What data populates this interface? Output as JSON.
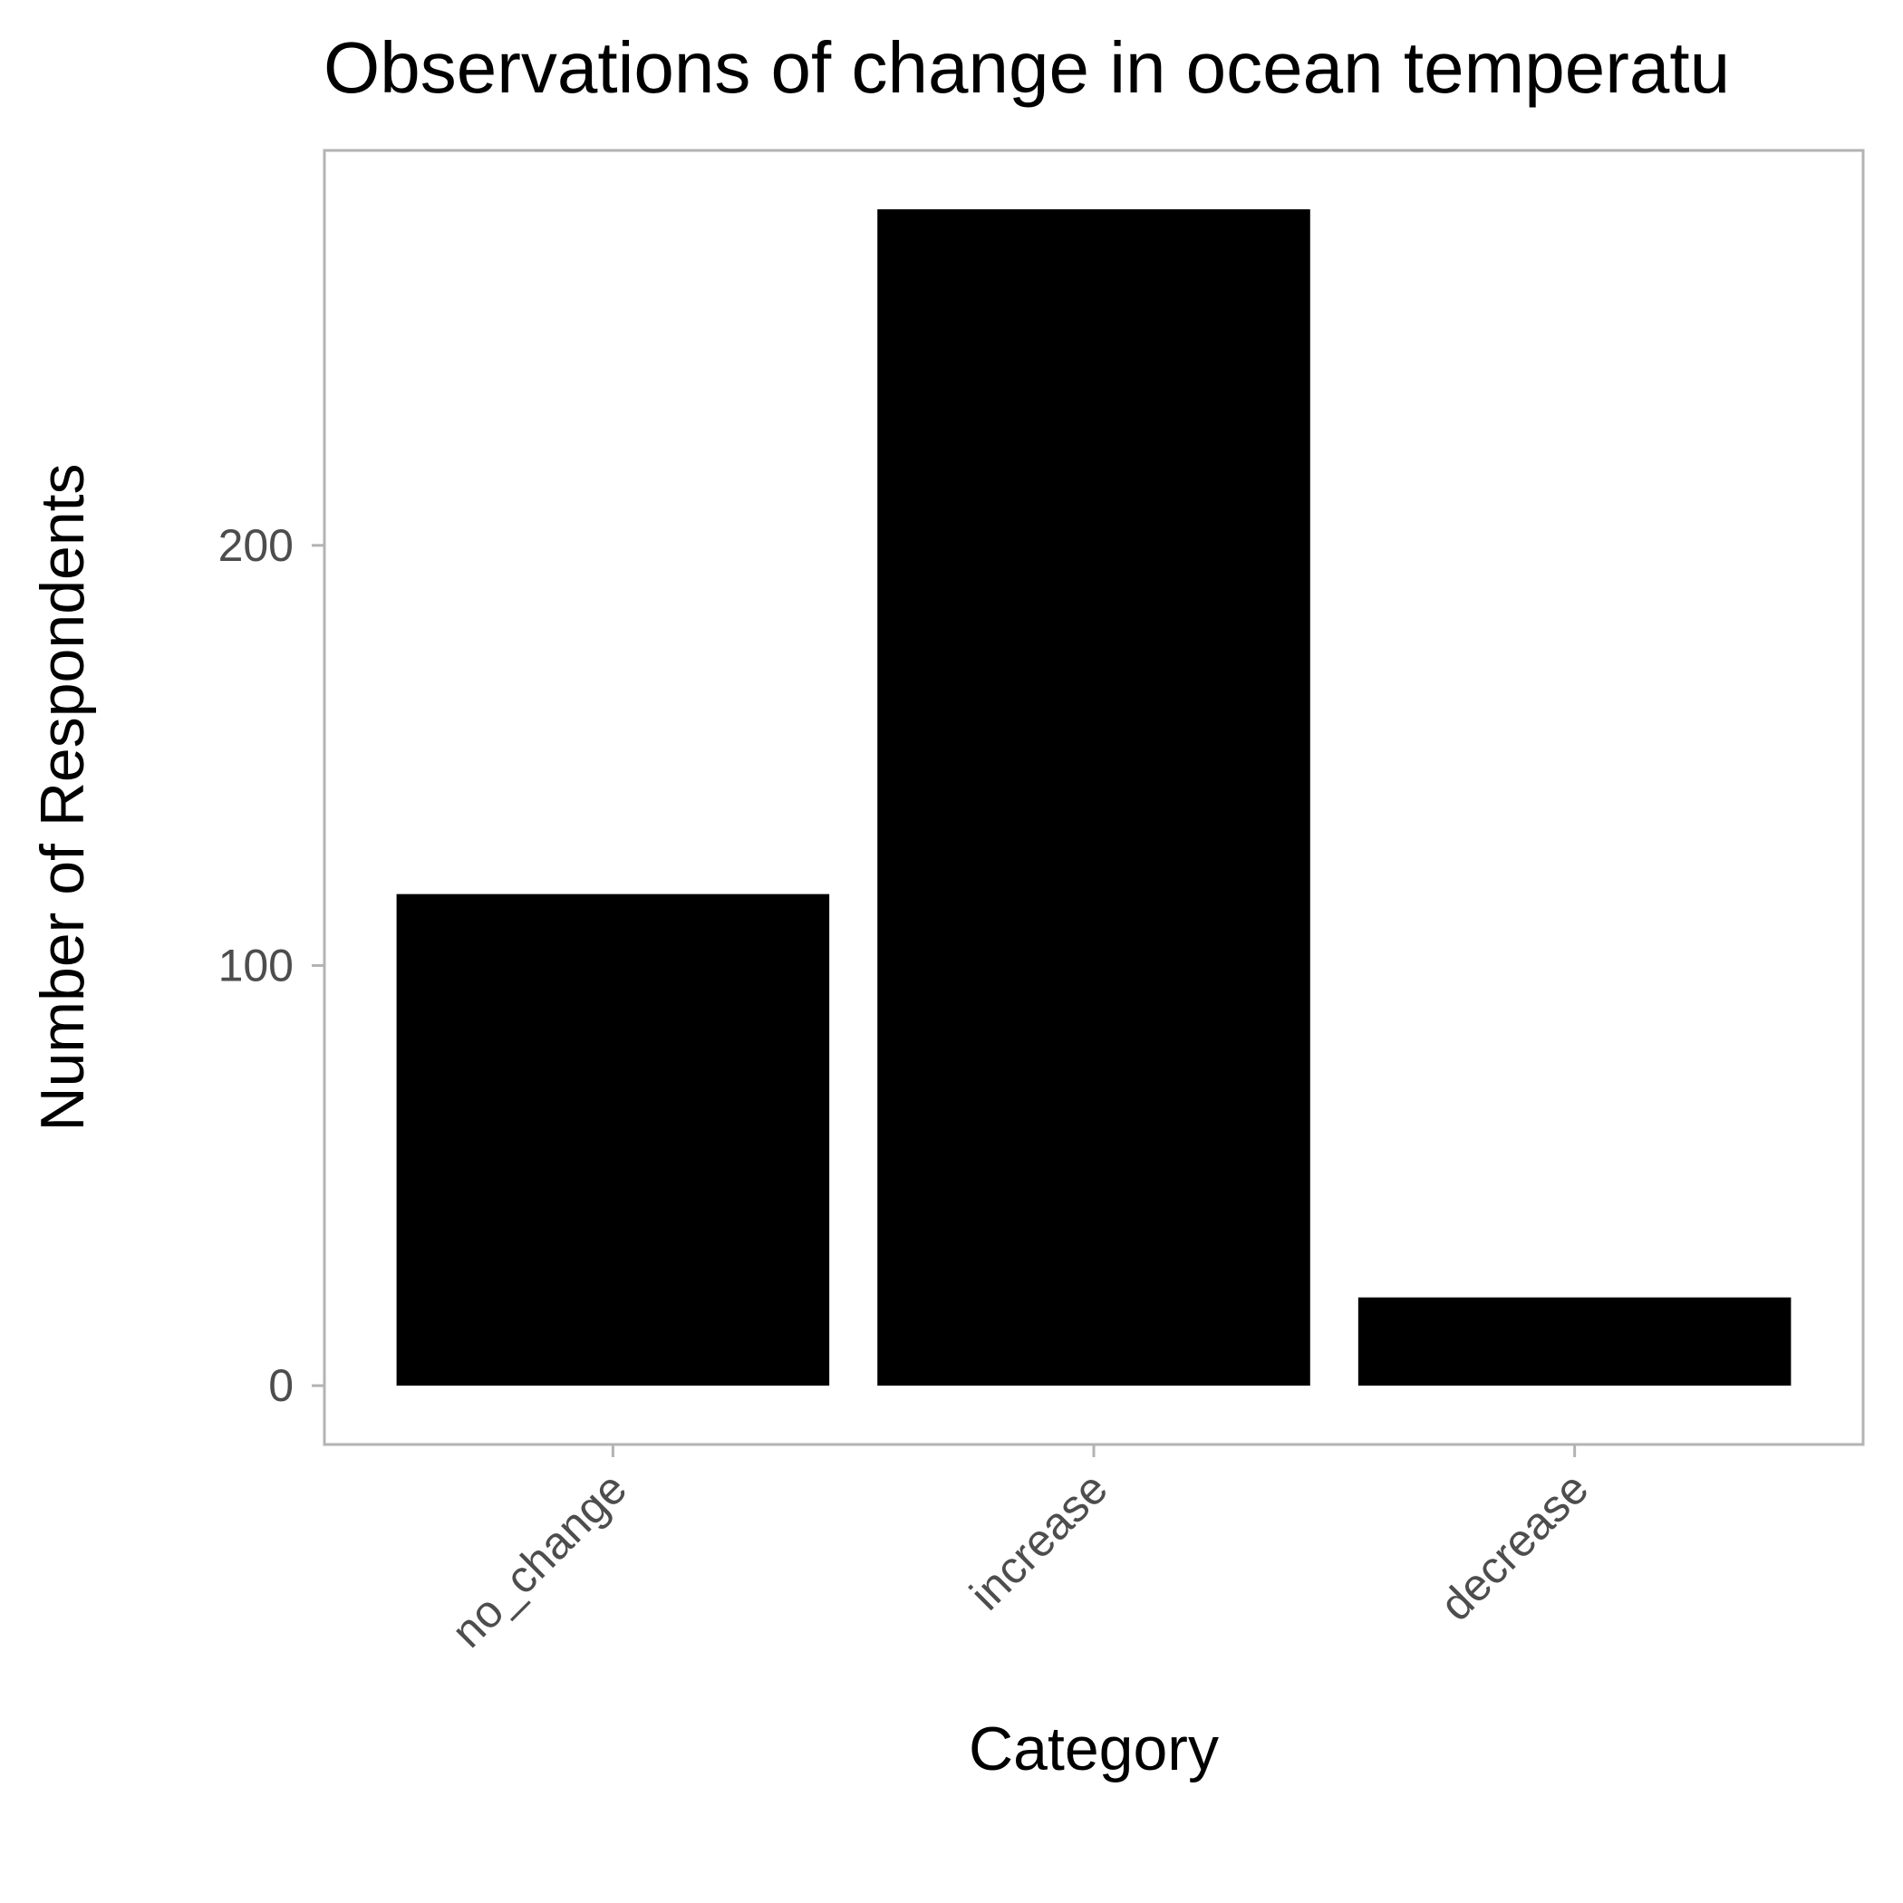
{
  "chart_data": {
    "type": "bar",
    "title": "Observations of change in ocean temperatu",
    "xlabel": "Category",
    "ylabel": "Number of Respondents",
    "categories": [
      "no_change",
      "increase",
      "decrease"
    ],
    "values": [
      117,
      280,
      21
    ],
    "yticks": [
      0,
      100,
      200
    ],
    "ytick_labels": [
      "0",
      "100",
      "200"
    ],
    "ylim": [
      -14,
      294
    ],
    "grid": false,
    "legend": "none",
    "colors": {
      "bar": "#000000",
      "panel_border": "#b3b3b3",
      "tick_label": "#4d4d4d",
      "background": "#ffffff"
    }
  }
}
